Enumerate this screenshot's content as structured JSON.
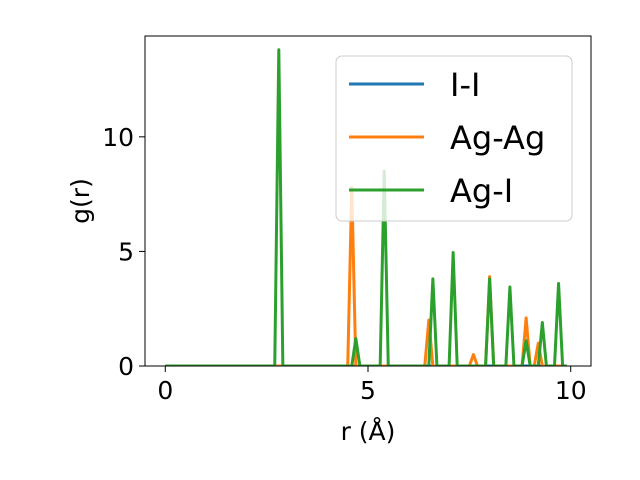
{
  "chart_data": {
    "type": "line",
    "title": "",
    "xlabel": "r (Å)",
    "ylabel": "g(r)",
    "xlim": [
      -0.5,
      10.5
    ],
    "ylim": [
      0,
      14.4
    ],
    "xticks": [
      0,
      5,
      10
    ],
    "yticks": [
      0,
      5,
      10
    ],
    "legend_position": "top-right",
    "grid": false,
    "series": [
      {
        "name": "I-I",
        "color": "#1f77b4",
        "points": [
          [
            0,
            0
          ],
          [
            9.9,
            0
          ]
        ]
      },
      {
        "name": "Ag-Ag",
        "color": "#ff7f0e",
        "points": [
          [
            0,
            0
          ],
          [
            4.5,
            0
          ],
          [
            4.6,
            7.8
          ],
          [
            4.7,
            0
          ],
          [
            6.4,
            0
          ],
          [
            6.5,
            2.0
          ],
          [
            6.6,
            0
          ],
          [
            7.5,
            0
          ],
          [
            7.6,
            0.5
          ],
          [
            7.7,
            0
          ],
          [
            7.9,
            0
          ],
          [
            8.0,
            3.9
          ],
          [
            8.1,
            0
          ],
          [
            8.8,
            0
          ],
          [
            8.9,
            2.1
          ],
          [
            9.0,
            0
          ],
          [
            9.1,
            0
          ],
          [
            9.2,
            1.0
          ],
          [
            9.3,
            0
          ],
          [
            9.9,
            0
          ]
        ]
      },
      {
        "name": "Ag-I",
        "color": "#2ca02c",
        "points": [
          [
            0,
            0
          ],
          [
            2.7,
            0
          ],
          [
            2.8,
            13.8
          ],
          [
            2.9,
            0
          ],
          [
            4.6,
            0
          ],
          [
            4.7,
            1.2
          ],
          [
            4.8,
            0
          ],
          [
            5.3,
            0
          ],
          [
            5.4,
            8.5
          ],
          [
            5.5,
            0
          ],
          [
            6.5,
            0
          ],
          [
            6.6,
            3.8
          ],
          [
            6.7,
            0
          ],
          [
            7.0,
            0
          ],
          [
            7.1,
            4.95
          ],
          [
            7.2,
            0
          ],
          [
            7.9,
            0
          ],
          [
            8.0,
            3.8
          ],
          [
            8.1,
            0
          ],
          [
            8.4,
            0
          ],
          [
            8.5,
            3.45
          ],
          [
            8.6,
            0
          ],
          [
            8.8,
            0
          ],
          [
            8.9,
            1.1
          ],
          [
            9.0,
            0
          ],
          [
            9.2,
            0
          ],
          [
            9.3,
            1.9
          ],
          [
            9.4,
            0
          ],
          [
            9.6,
            0
          ],
          [
            9.7,
            3.6
          ],
          [
            9.8,
            0
          ],
          [
            9.9,
            0
          ]
        ]
      }
    ]
  }
}
